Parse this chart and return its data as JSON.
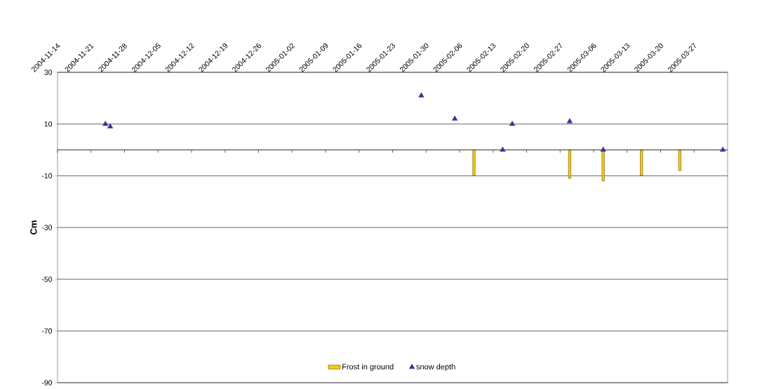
{
  "chart_data": {
    "type": "bar",
    "ylabel": "Cm",
    "xlim": [
      "2004-11-14",
      "2005-04-03"
    ],
    "xticks": [
      "2004-11-14",
      "2004-11-21",
      "2004-11-28",
      "2004-12-05",
      "2004-12-12",
      "2004-12-19",
      "2004-12-26",
      "2005-01-02",
      "2005-01-09",
      "2005-01-16",
      "2005-01-23",
      "2005-01-30",
      "2005-02-06",
      "2005-02-13",
      "2005-02-20",
      "2005-02-27",
      "2005-03-06",
      "2005-03-13",
      "2005-03-20",
      "2005-03-27"
    ],
    "ylim": [
      -90,
      30
    ],
    "yticks": [
      -90,
      -70,
      -50,
      -30,
      -10,
      10,
      30
    ],
    "grid": "y",
    "legend": "bottom",
    "marker": "triangle",
    "series": [
      {
        "name": "Frost in ground",
        "color": "#ffcc00",
        "x": [
          "2005-02-09",
          "2005-03-01",
          "2005-03-08",
          "2005-03-16",
          "2005-03-24"
        ],
        "values": [
          -10,
          -11,
          -12,
          -10,
          -8
        ]
      },
      {
        "name": "snow depth",
        "type": "scatter",
        "color": "#333399",
        "x": [
          "2004-11-24",
          "2004-11-25",
          "2005-01-29",
          "2005-02-05",
          "2005-02-15",
          "2005-02-17",
          "2005-03-01",
          "2005-03-08",
          "2005-04-02"
        ],
        "values": [
          10,
          9,
          21,
          12,
          0,
          10,
          11,
          0,
          0
        ]
      }
    ]
  }
}
